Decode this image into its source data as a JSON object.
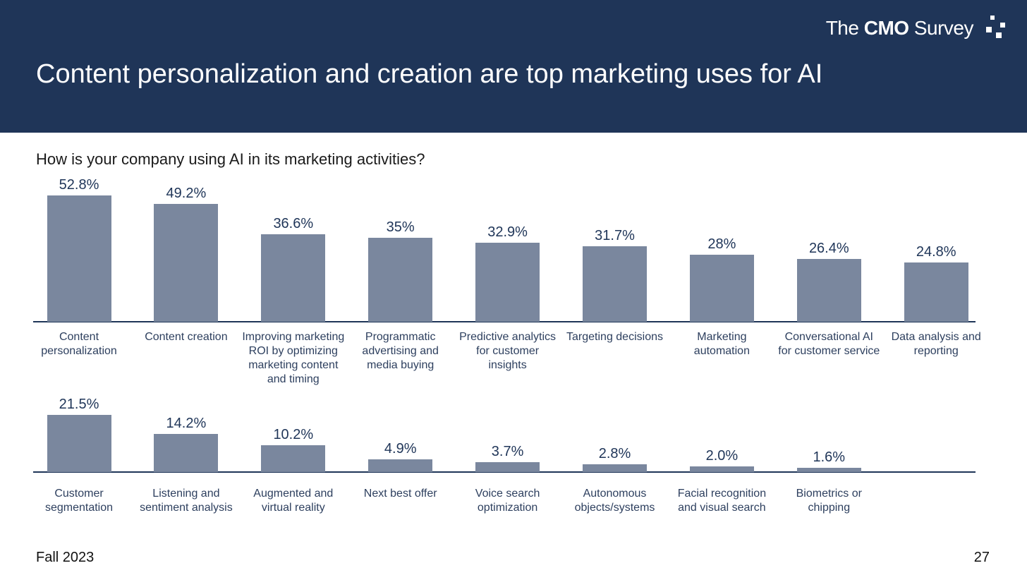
{
  "header": {
    "title": "Content personalization and creation are top marketing uses for AI",
    "logo": {
      "prefix": "The",
      "bold": "CMO",
      "suffix": "Survey"
    }
  },
  "question": "How is your company using AI in its marketing activities?",
  "footer": {
    "left": "Fall 2023",
    "page": "27"
  },
  "chart_data": [
    {
      "type": "bar",
      "color": "#7a879e",
      "categories": [
        "Content personalization",
        "Content creation",
        "Improving marketing ROI by optimizing marketing content and timing",
        "Programmatic advertising and media buying",
        "Predictive analytics for customer insights",
        "Targeting decisions",
        "Marketing automation",
        "Conversational AI for customer service",
        "Data analysis and reporting"
      ],
      "values": [
        52.8,
        49.2,
        36.6,
        35,
        32.9,
        31.7,
        28,
        26.4,
        24.8
      ],
      "value_labels": [
        "52.8%",
        "49.2%",
        "36.6%",
        "35%",
        "32.9%",
        "31.7%",
        "28%",
        "26.4%",
        "24.8%"
      ]
    },
    {
      "type": "bar",
      "color": "#7a879e",
      "categories": [
        "Customer segmentation",
        "Listening and sentiment analysis",
        "Augmented and virtual reality",
        "Next best offer",
        "Voice search optimization",
        "Autonomous objects/systems",
        "Facial recognition and visual search",
        "Biometrics or chipping"
      ],
      "values": [
        21.5,
        14.2,
        10.2,
        4.9,
        3.7,
        2.8,
        2.0,
        1.6
      ],
      "value_labels": [
        "21.5%",
        "14.2%",
        "10.2%",
        "4.9%",
        "3.7%",
        "2.8%",
        "2.0%",
        "1.6%"
      ]
    }
  ]
}
